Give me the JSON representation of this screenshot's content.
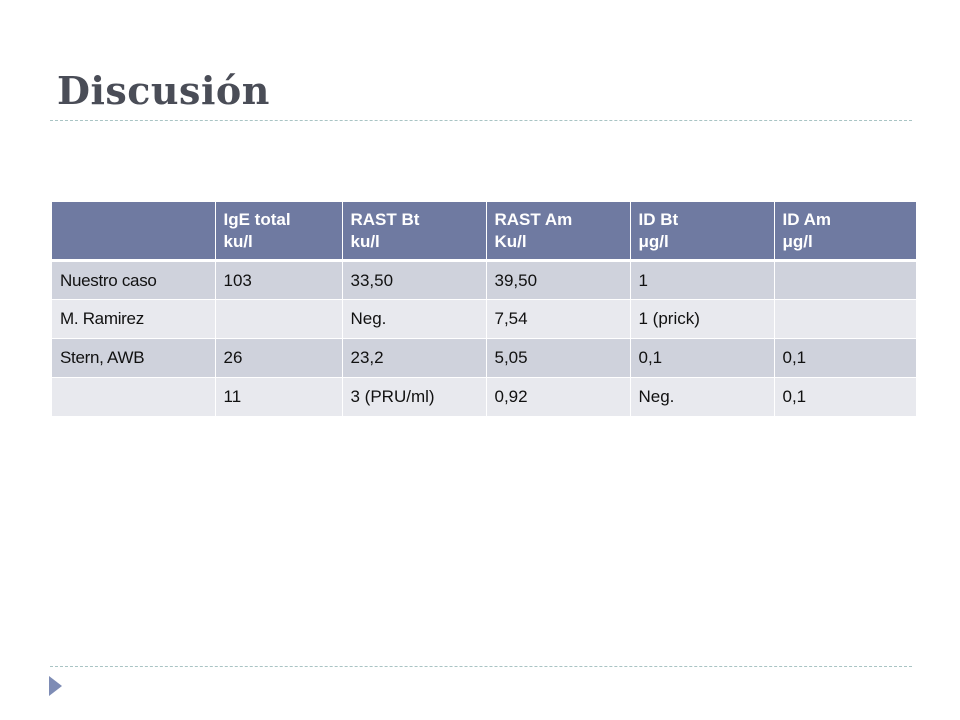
{
  "slide": {
    "title": "Discusión"
  },
  "table": {
    "headers": [
      {
        "line1": "",
        "line2": ""
      },
      {
        "line1": "IgE total",
        "line2": "ku/l"
      },
      {
        "line1": "RAST Bt",
        "line2": "ku/l"
      },
      {
        "line1": "RAST Am",
        "line2": "Ku/l"
      },
      {
        "line1": "ID Bt",
        "line2": "μg/l"
      },
      {
        "line1": "ID Am",
        "line2": "μg/l"
      }
    ],
    "rows": [
      [
        "Nuestro caso",
        "103",
        "33,50",
        "39,50",
        "1",
        ""
      ],
      [
        "M. Ramirez",
        "",
        "Neg.",
        "7,54",
        "1 (prick)",
        ""
      ],
      [
        "Stern, AWB",
        "26",
        "23,2",
        "5,05",
        "0,1",
        "0,1"
      ],
      [
        "",
        "11",
        "3 (PRU/ml)",
        "0,92",
        "Neg.",
        "0,1"
      ]
    ]
  },
  "colors": {
    "header_bg": "#6f7aa1",
    "row_dark": "#cfd2dc",
    "row_light": "#e8e9ee",
    "title": "#4a4d57",
    "accent_arrow": "#7e8cb5"
  },
  "icons": {
    "footer": "triangle-bullet-icon"
  }
}
